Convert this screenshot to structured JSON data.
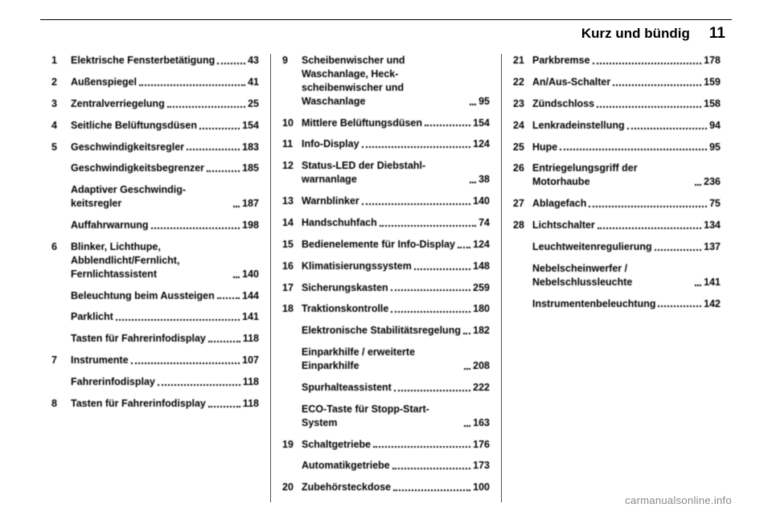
{
  "header": {
    "chapter_title": "Kurz und bündig",
    "page_number": "11"
  },
  "footer": {
    "text": "carmanualsonline.info"
  },
  "columns": [
    [
      {
        "n": "1",
        "label": "Elektrische Fensterbetätigung",
        "page": "43"
      },
      {
        "n": "2",
        "label": "Außenspiegel",
        "page": "41"
      },
      {
        "n": "3",
        "label": "Zentralverriegelung",
        "page": "25"
      },
      {
        "n": "4",
        "label": "Seitliche Belüftungsdüsen",
        "page": "154"
      },
      {
        "n": "5",
        "label": "Geschwindigkeitsregler",
        "page": "183"
      },
      {
        "n": "",
        "label": "Geschwindigkeitsbe­grenzer",
        "page": "185"
      },
      {
        "n": "",
        "label": "Adaptiver Geschwindig­keitsregler",
        "page": "187"
      },
      {
        "n": "",
        "label": "Auffahrwarnung",
        "page": "198"
      },
      {
        "n": "6",
        "label": "Blinker, Lichthupe, Abblendlicht/Fernlicht, Fernlichtassistent",
        "page": "140"
      },
      {
        "n": "",
        "label": "Beleuchtung beim Aussteigen",
        "page": "144"
      },
      {
        "n": "",
        "label": "Parklicht",
        "page": "141"
      },
      {
        "n": "",
        "label": "Tasten für Fahrerinfodisplay",
        "page": "118"
      },
      {
        "n": "7",
        "label": "Instrumente",
        "page": "107"
      },
      {
        "n": "",
        "label": "Fahrerinfodisplay",
        "page": "118"
      },
      {
        "n": "8",
        "label": "Tasten für Fahrerinfodisplay",
        "page": "118"
      }
    ],
    [
      {
        "n": "9",
        "label": "Scheibenwischer und Waschanlage, Heck­scheibenwischer und Waschanlage",
        "page": "95"
      },
      {
        "n": "10",
        "label": "Mittlere Belüftungsdüsen",
        "page": "154"
      },
      {
        "n": "11",
        "label": "Info-Display",
        "page": "124"
      },
      {
        "n": "12",
        "label": "Status-LED der Diebstahl­warnanlage",
        "page": "38"
      },
      {
        "n": "13",
        "label": "Warnblinker",
        "page": "140"
      },
      {
        "n": "14",
        "label": "Handschuhfach",
        "page": "74"
      },
      {
        "n": "15",
        "label": "Bedienelemente für Info-Display",
        "page": "124"
      },
      {
        "n": "16",
        "label": "Klimatisierungssystem",
        "page": "148"
      },
      {
        "n": "17",
        "label": "Sicherungskasten",
        "page": "259"
      },
      {
        "n": "18",
        "label": "Traktionskontrolle",
        "page": "180"
      },
      {
        "n": "",
        "label": "Elektronische Stabilitäts­regelung",
        "page": "182"
      },
      {
        "n": "",
        "label": "Einparkhilfe / erweiterte Einparkhilfe",
        "page": "208"
      },
      {
        "n": "",
        "label": "Spurhalteassistent",
        "page": "222"
      },
      {
        "n": "",
        "label": "ECO-Taste für Stopp-Start-System",
        "page": "163"
      },
      {
        "n": "19",
        "label": "Schaltgetriebe",
        "page": "176"
      },
      {
        "n": "",
        "label": "Automatikgetriebe",
        "page": "173"
      },
      {
        "n": "20",
        "label": "Zubehörsteckdose",
        "page": "100"
      }
    ],
    [
      {
        "n": "21",
        "label": "Parkbremse",
        "page": "178"
      },
      {
        "n": "22",
        "label": "An/Aus-Schalter",
        "page": "159"
      },
      {
        "n": "23",
        "label": "Zündschloss",
        "page": "158"
      },
      {
        "n": "24",
        "label": "Lenkradeinstellung",
        "page": "94"
      },
      {
        "n": "25",
        "label": "Hupe",
        "page": "95"
      },
      {
        "n": "26",
        "label": "Entriegelungsgriff der Motorhaube",
        "page": "236"
      },
      {
        "n": "27",
        "label": "Ablagefach",
        "page": "75"
      },
      {
        "n": "28",
        "label": "Lichtschalter",
        "page": "134"
      },
      {
        "n": "",
        "label": "Leuchtweitenregulierung",
        "page": "137"
      },
      {
        "n": "",
        "label": "Nebelscheinwerfer / Nebelschlussleuchte",
        "page": "141"
      },
      {
        "n": "",
        "label": "Instrumentenbeleuchtung",
        "page": "142"
      }
    ]
  ]
}
